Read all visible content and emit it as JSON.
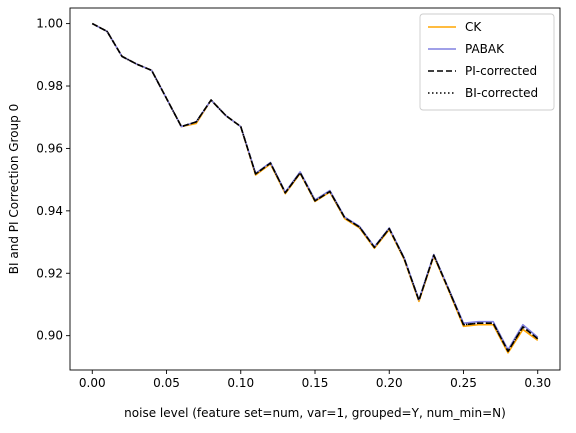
{
  "chart_data": {
    "type": "line",
    "title": "",
    "xlabel": "noise level (feature set=num, var=1, grouped=Y, num_min=N)",
    "ylabel": "BI and PI Correction Group 0",
    "xlim": [
      -0.015,
      0.315
    ],
    "ylim": [
      0.889,
      1.005
    ],
    "xticks": [
      0.0,
      0.05,
      0.1,
      0.15,
      0.2,
      0.25,
      0.3
    ],
    "xtick_labels": [
      "0.00",
      "0.05",
      "0.10",
      "0.15",
      "0.20",
      "0.25",
      "0.30"
    ],
    "yticks": [
      0.9,
      0.92,
      0.94,
      0.96,
      0.98,
      1.0
    ],
    "ytick_labels": [
      "0.90",
      "0.92",
      "0.94",
      "0.96",
      "0.98",
      "1.00"
    ],
    "grid": false,
    "legend_position": "top-right",
    "x": [
      0.0,
      0.01,
      0.02,
      0.03,
      0.04,
      0.05,
      0.06,
      0.07,
      0.08,
      0.09,
      0.1,
      0.11,
      0.12,
      0.13,
      0.14,
      0.15,
      0.16,
      0.17,
      0.18,
      0.19,
      0.2,
      0.21,
      0.22,
      0.23,
      0.24,
      0.25,
      0.26,
      0.27,
      0.28,
      0.29,
      0.3
    ],
    "series": [
      {
        "name": "CK",
        "color": "#ffa500",
        "dash": "solid",
        "values": [
          1.0,
          0.9975,
          0.9895,
          0.987,
          0.985,
          0.976,
          0.967,
          0.968,
          0.9755,
          0.9705,
          0.967,
          0.9515,
          0.955,
          0.9455,
          0.952,
          0.943,
          0.946,
          0.9375,
          0.9345,
          0.928,
          0.934,
          0.9245,
          0.911,
          0.9255,
          0.9145,
          0.903,
          0.9035,
          0.9035,
          0.8945,
          0.902,
          0.8985
        ]
      },
      {
        "name": "PABAK",
        "color": "#8080e0",
        "dash": "solid",
        "values": [
          1.0,
          0.9975,
          0.9895,
          0.987,
          0.985,
          0.976,
          0.967,
          0.9685,
          0.9755,
          0.9705,
          0.967,
          0.952,
          0.9555,
          0.946,
          0.9525,
          0.9435,
          0.9465,
          0.938,
          0.935,
          0.9285,
          0.9345,
          0.925,
          0.9115,
          0.926,
          0.915,
          0.904,
          0.9045,
          0.9045,
          0.8955,
          0.9035,
          0.8995
        ]
      },
      {
        "name": "PI-corrected",
        "color": "#000000",
        "dash": "dashed",
        "values": [
          1.0,
          0.9975,
          0.9895,
          0.987,
          0.985,
          0.976,
          0.967,
          0.9685,
          0.9755,
          0.9705,
          0.967,
          0.9518,
          0.9553,
          0.9458,
          0.9522,
          0.9432,
          0.9462,
          0.9378,
          0.9348,
          0.9283,
          0.9343,
          0.9248,
          0.9113,
          0.9258,
          0.9148,
          0.9035,
          0.904,
          0.904,
          0.895,
          0.9028,
          0.899
        ]
      },
      {
        "name": "BI-corrected",
        "color": "#000000",
        "dash": "dotted",
        "values": [
          1.0,
          0.9975,
          0.9895,
          0.987,
          0.985,
          0.976,
          0.967,
          0.9685,
          0.9755,
          0.9705,
          0.967,
          0.9518,
          0.9553,
          0.9458,
          0.9522,
          0.9432,
          0.9462,
          0.9378,
          0.9348,
          0.9283,
          0.9343,
          0.9248,
          0.9113,
          0.9258,
          0.9148,
          0.9035,
          0.904,
          0.904,
          0.895,
          0.9028,
          0.899
        ]
      }
    ]
  }
}
